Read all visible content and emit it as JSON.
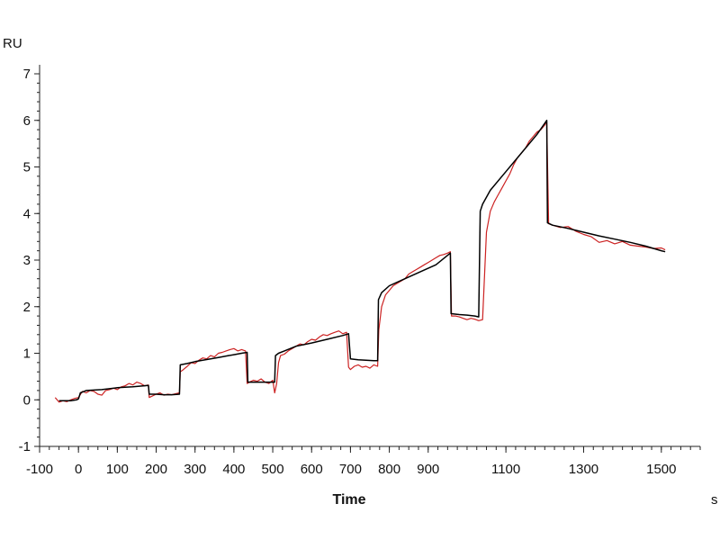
{
  "chart_data": {
    "type": "line",
    "xlabel": "Time",
    "x_unit": "s",
    "y_unit": "RU",
    "xlim": [
      -100,
      1600
    ],
    "ylim": [
      -1,
      7
    ],
    "x_ticks": [
      "-100",
      "0",
      "100",
      "200",
      "300",
      "400",
      "500",
      "600",
      "700",
      "800",
      "900",
      "1100",
      "1300",
      "1500"
    ],
    "y_ticks": [
      "-1",
      "0",
      "1",
      "2",
      "3",
      "4",
      "5",
      "6",
      "7"
    ],
    "grid": false,
    "series": [
      {
        "color": "#cc2222",
        "x": [
          -60,
          -50,
          -40,
          -30,
          -20,
          -10,
          0,
          10,
          20,
          30,
          40,
          50,
          60,
          70,
          80,
          90,
          100,
          110,
          120,
          130,
          140,
          150,
          160,
          170,
          180,
          182,
          190,
          200,
          210,
          220,
          230,
          240,
          250,
          260,
          262,
          270,
          280,
          290,
          300,
          310,
          320,
          330,
          340,
          350,
          360,
          370,
          380,
          390,
          400,
          410,
          420,
          430,
          434,
          440,
          450,
          460,
          470,
          480,
          490,
          500,
          505,
          510,
          515,
          520,
          530,
          540,
          550,
          560,
          570,
          580,
          590,
          600,
          610,
          620,
          630,
          640,
          650,
          660,
          670,
          680,
          690,
          695,
          700,
          710,
          720,
          730,
          740,
          750,
          760,
          770,
          773,
          780,
          790,
          800,
          810,
          820,
          830,
          840,
          850,
          860,
          870,
          880,
          890,
          900,
          910,
          920,
          930,
          940,
          950,
          957,
          960,
          970,
          980,
          990,
          1000,
          1010,
          1020,
          1030,
          1040,
          1050,
          1060,
          1070,
          1080,
          1090,
          1100,
          1110,
          1120,
          1130,
          1140,
          1150,
          1160,
          1170,
          1180,
          1190,
          1200,
          1205,
          1210,
          1220,
          1240,
          1260,
          1280,
          1300,
          1320,
          1340,
          1360,
          1380,
          1400,
          1420,
          1440,
          1460,
          1480,
          1500,
          1510
        ],
        "values": [
          0.05,
          -0.05,
          -0.02,
          -0.04,
          0.0,
          0.03,
          0.05,
          0.18,
          0.15,
          0.2,
          0.18,
          0.12,
          0.1,
          0.2,
          0.22,
          0.25,
          0.22,
          0.28,
          0.3,
          0.35,
          0.32,
          0.38,
          0.35,
          0.3,
          0.32,
          0.05,
          0.08,
          0.12,
          0.15,
          0.1,
          0.12,
          0.11,
          0.13,
          0.15,
          0.6,
          0.65,
          0.72,
          0.8,
          0.78,
          0.85,
          0.9,
          0.88,
          0.95,
          0.92,
          1.0,
          1.02,
          1.05,
          1.08,
          1.1,
          1.05,
          1.08,
          1.05,
          0.35,
          0.38,
          0.42,
          0.4,
          0.45,
          0.38,
          0.35,
          0.42,
          0.15,
          0.35,
          0.8,
          0.95,
          0.98,
          1.05,
          1.1,
          1.15,
          1.2,
          1.18,
          1.25,
          1.3,
          1.28,
          1.35,
          1.4,
          1.38,
          1.42,
          1.45,
          1.48,
          1.42,
          1.45,
          0.7,
          0.65,
          0.72,
          0.75,
          0.7,
          0.72,
          0.68,
          0.75,
          0.72,
          1.5,
          2.0,
          2.25,
          2.35,
          2.45,
          2.5,
          2.55,
          2.6,
          2.7,
          2.75,
          2.8,
          2.85,
          2.9,
          2.95,
          3.0,
          3.05,
          3.1,
          3.12,
          3.15,
          3.18,
          1.8,
          1.8,
          1.78,
          1.75,
          1.72,
          1.75,
          1.73,
          1.7,
          1.72,
          3.6,
          4.05,
          4.25,
          4.4,
          4.55,
          4.7,
          4.85,
          5.05,
          5.2,
          5.3,
          5.4,
          5.55,
          5.65,
          5.75,
          5.8,
          5.9,
          5.97,
          3.78,
          3.75,
          3.7,
          3.72,
          3.62,
          3.55,
          3.5,
          3.38,
          3.42,
          3.35,
          3.4,
          3.32,
          3.3,
          3.28,
          3.25,
          3.26,
          3.22
        ]
      },
      {
        "color": "#000000",
        "x": [
          -50,
          -20,
          -5,
          0,
          5,
          20,
          60,
          100,
          140,
          180,
          182,
          200,
          220,
          240,
          260,
          262,
          280,
          300,
          320,
          340,
          360,
          380,
          400,
          420,
          434,
          436,
          450,
          470,
          490,
          505,
          507,
          515,
          530,
          560,
          600,
          640,
          680,
          695,
          700,
          720,
          740,
          760,
          770,
          772,
          780,
          800,
          840,
          880,
          920,
          957,
          959,
          980,
          1000,
          1020,
          1030,
          1034,
          1040,
          1060,
          1100,
          1140,
          1180,
          1205,
          1207,
          1220,
          1260,
          1300,
          1340,
          1380,
          1420,
          1460,
          1500,
          1510
        ],
        "values": [
          -0.02,
          -0.02,
          0.0,
          0.02,
          0.15,
          0.2,
          0.22,
          0.26,
          0.28,
          0.31,
          0.12,
          0.12,
          0.11,
          0.11,
          0.12,
          0.75,
          0.78,
          0.82,
          0.85,
          0.88,
          0.91,
          0.94,
          0.97,
          1.0,
          1.02,
          0.38,
          0.38,
          0.38,
          0.38,
          0.38,
          0.95,
          1.0,
          1.05,
          1.15,
          1.22,
          1.3,
          1.38,
          1.42,
          0.88,
          0.86,
          0.85,
          0.84,
          0.84,
          2.15,
          2.3,
          2.45,
          2.6,
          2.75,
          2.9,
          3.15,
          1.85,
          1.83,
          1.82,
          1.8,
          1.78,
          4.05,
          4.2,
          4.5,
          4.9,
          5.3,
          5.7,
          6.0,
          3.8,
          3.75,
          3.68,
          3.6,
          3.52,
          3.45,
          3.38,
          3.3,
          3.2,
          3.18
        ]
      }
    ]
  }
}
